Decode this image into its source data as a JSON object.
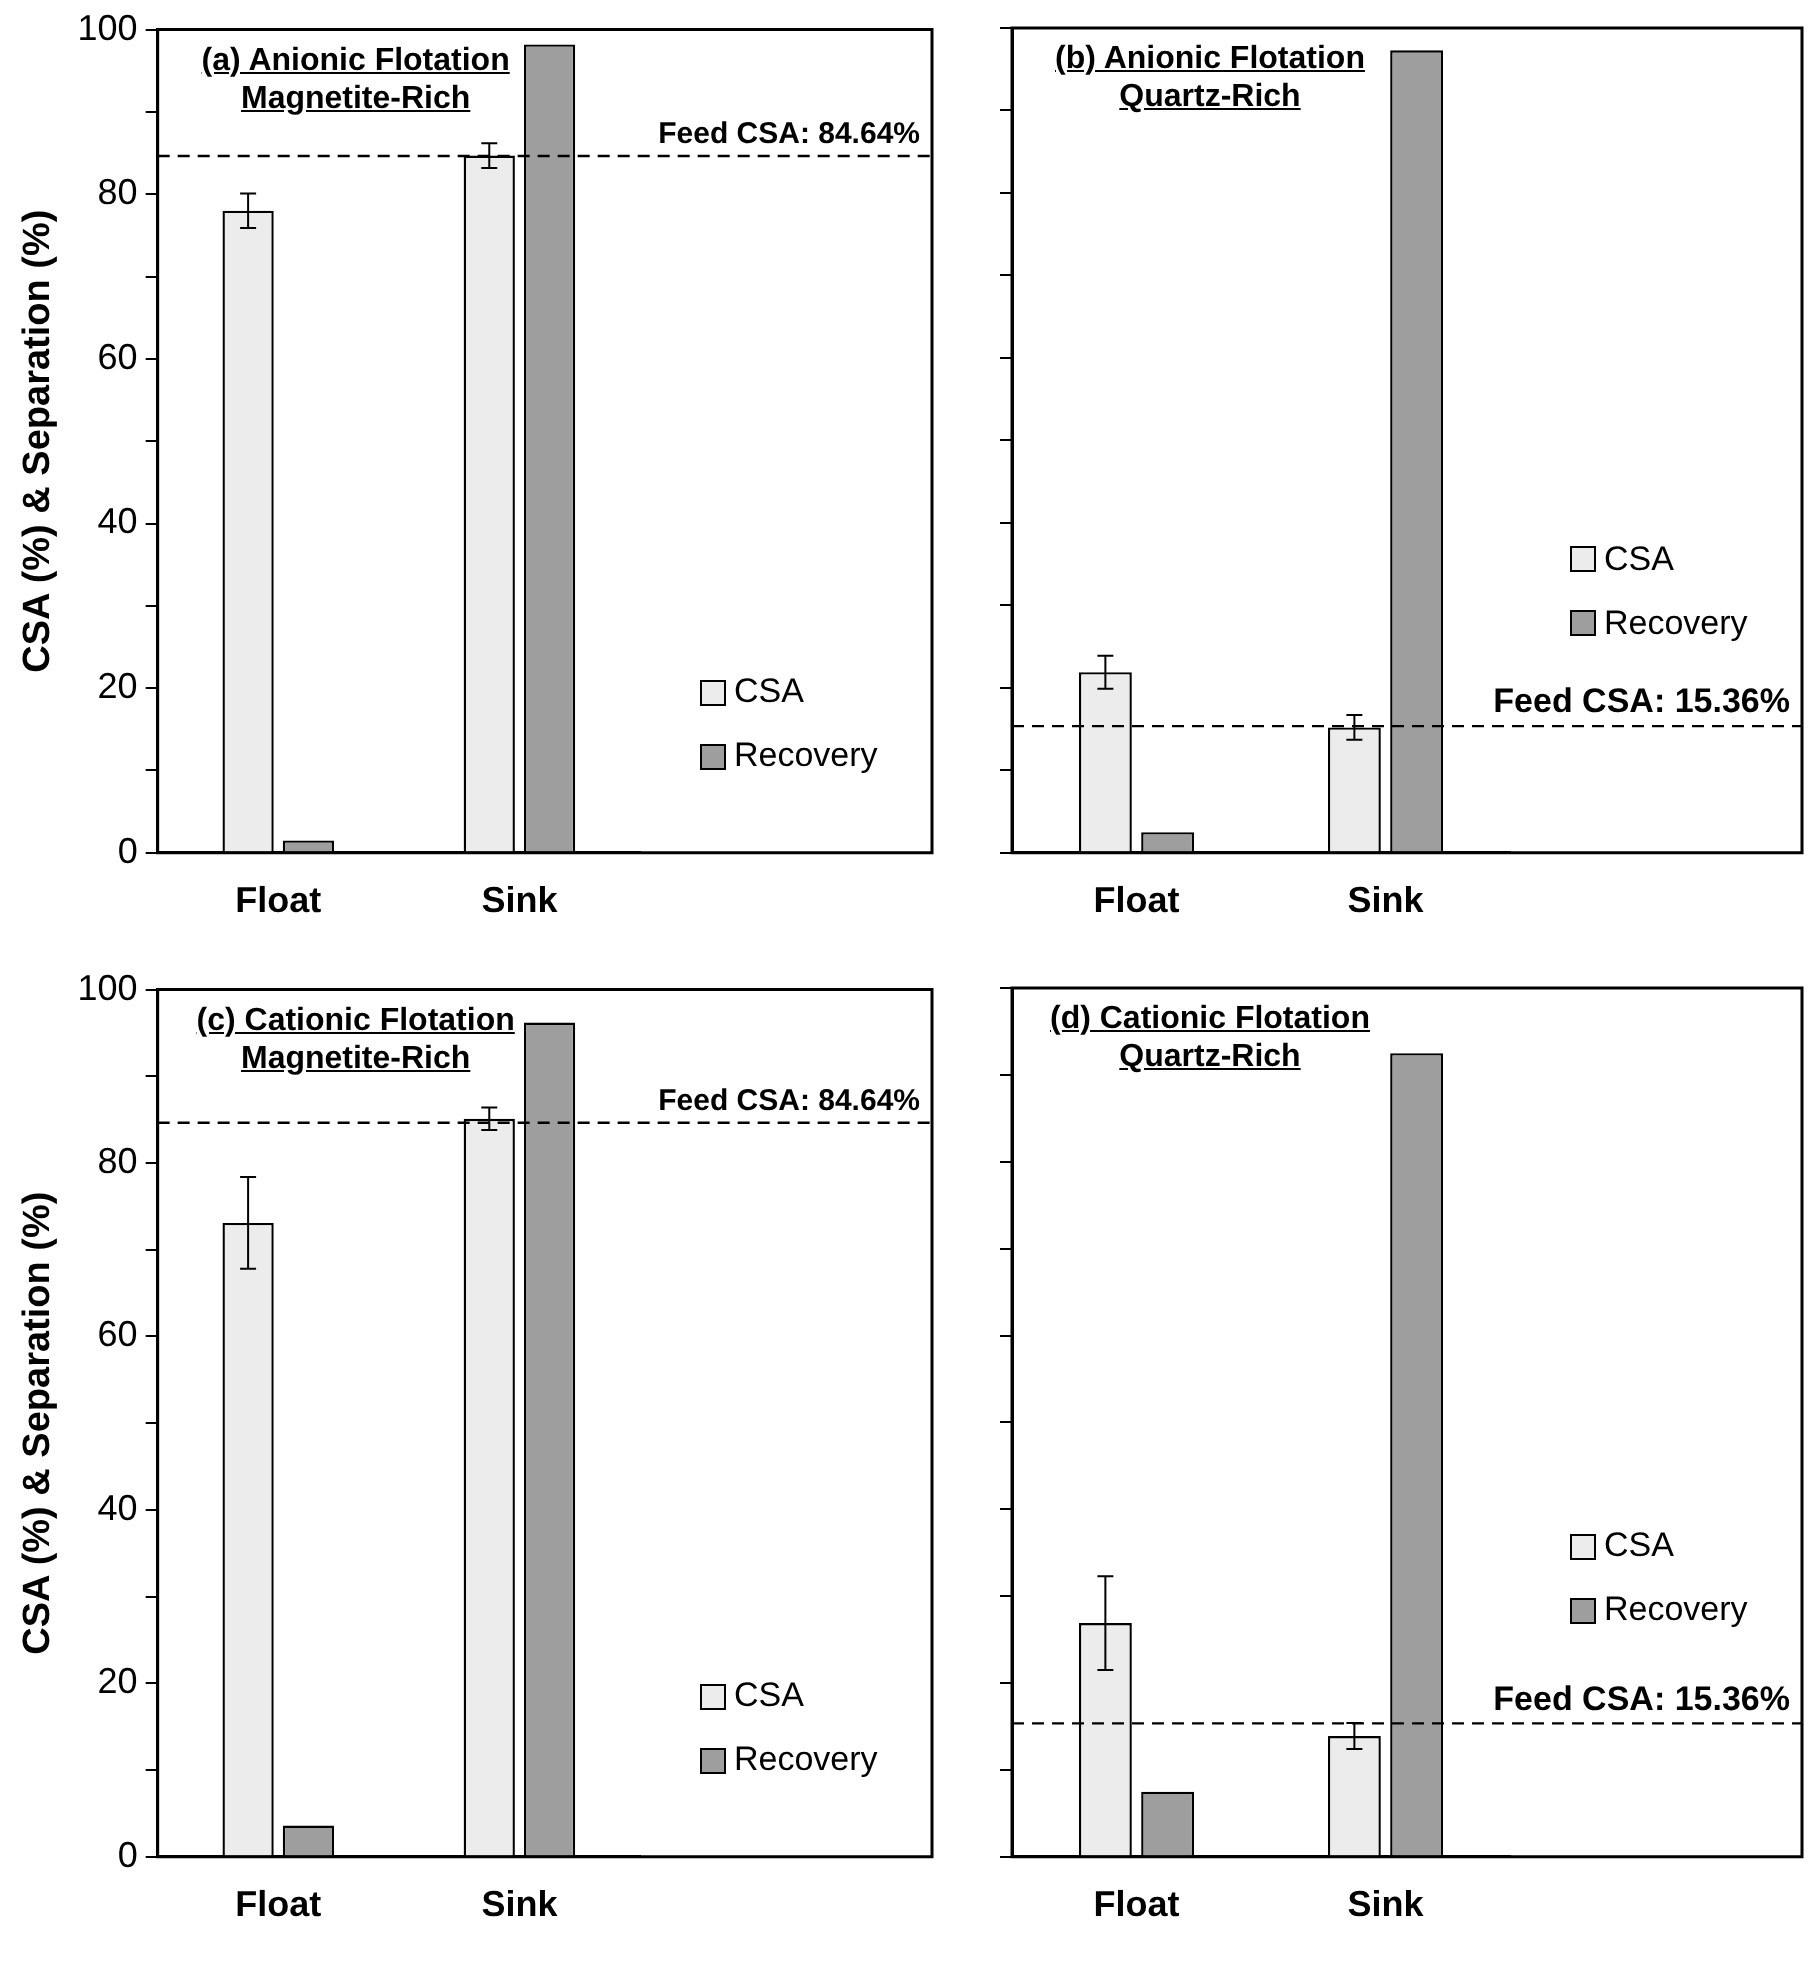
{
  "chart_data": [
    {
      "type": "bar",
      "title": "(a) Anionic Flotation Magnetite-Rich",
      "ylabel": "CSA (%) & Separation (%)",
      "categories": [
        "Float",
        "Sink"
      ],
      "series": [
        {
          "name": "CSA",
          "color": "#ececec",
          "values": [
            78.0,
            84.7
          ],
          "errors": [
            2.1,
            1.5
          ]
        },
        {
          "name": "Recovery",
          "color": "#9e9e9e",
          "values": [
            1.5,
            98.2
          ]
        }
      ],
      "ylim": [
        0,
        100
      ],
      "yticks": [
        0,
        {
          "value": 10,
          "label": null
        },
        20,
        {
          "value": 30,
          "label": null
        },
        40,
        {
          "value": 50,
          "label": null
        },
        60,
        {
          "value": 70,
          "label": null
        },
        80,
        {
          "value": 90,
          "label": null
        },
        100
      ],
      "ref_lines": [
        {
          "axis": "y",
          "value": 84.64,
          "label": "Feed CSA: 84.64%",
          "line_style": "dashed"
        }
      ],
      "legend": "bottom right"
    },
    {
      "type": "bar",
      "title": "(b) Anionic Flotation Quartz-Rich",
      "categories": [
        "Float",
        "Sink"
      ],
      "series": [
        {
          "name": "CSA",
          "color": "#ececec",
          "values": [
            21.9,
            15.2
          ],
          "errors": [
            2.0,
            1.5
          ]
        },
        {
          "name": "Recovery",
          "color": "#9e9e9e",
          "values": [
            2.5,
            97.3
          ]
        }
      ],
      "ylim": [
        0,
        100
      ],
      "yticks": [
        0,
        {
          "value": 10,
          "label": null
        },
        20,
        {
          "value": 30,
          "label": null
        },
        40,
        {
          "value": 50,
          "label": null
        },
        60,
        {
          "value": 70,
          "label": null
        },
        80,
        {
          "value": 90,
          "label": null
        },
        100
      ],
      "ref_lines": [
        {
          "axis": "y",
          "value": 15.36,
          "label": "Feed CSA: 15.36%",
          "line_style": "dashed"
        }
      ],
      "legend": "right",
      "tick_labels": "x"
    },
    {
      "type": "bar",
      "title": "(c) Cationic Flotation Magnetite-Rich",
      "ylabel": "CSA (%) & Separation (%)",
      "categories": [
        "Float",
        "Sink"
      ],
      "series": [
        {
          "name": "CSA",
          "color": "#ececec",
          "values": [
            73.1,
            85.1
          ],
          "errors": [
            5.3,
            1.3
          ]
        },
        {
          "name": "Recovery",
          "color": "#9e9e9e",
          "values": [
            3.6,
            96.2
          ]
        }
      ],
      "ylim": [
        0,
        100
      ],
      "yticks": [
        0,
        {
          "value": 10,
          "label": null
        },
        20,
        {
          "value": 30,
          "label": null
        },
        40,
        {
          "value": 50,
          "label": null
        },
        60,
        {
          "value": 70,
          "label": null
        },
        80,
        {
          "value": 90,
          "label": null
        },
        100
      ],
      "ref_lines": [
        {
          "axis": "y",
          "value": 84.64,
          "label": "Feed CSA: 84.64%",
          "line_style": "dashed"
        }
      ],
      "legend": "bottom right"
    },
    {
      "type": "bar",
      "title": "(d) Cationic Flotation Quartz-Rich",
      "categories": [
        "Float",
        "Sink"
      ],
      "series": [
        {
          "name": "CSA",
          "color": "#ececec",
          "values": [
            26.9,
            13.9
          ],
          "errors": [
            5.4,
            1.5
          ]
        },
        {
          "name": "Recovery",
          "color": "#9e9e9e",
          "values": [
            7.5,
            92.5
          ]
        }
      ],
      "ylim": [
        0,
        100
      ],
      "yticks": [
        0,
        {
          "value": 10,
          "label": null
        },
        20,
        {
          "value": 30,
          "label": null
        },
        40,
        {
          "value": 50,
          "label": null
        },
        60,
        {
          "value": 70,
          "label": null
        },
        80,
        {
          "value": 90,
          "label": null
        },
        100
      ],
      "ref_lines": [
        {
          "axis": "y",
          "value": 15.36,
          "label": "Feed CSA: 15.36%",
          "line_style": "dashed"
        }
      ],
      "legend": "right",
      "tick_labels": "x"
    }
  ]
}
